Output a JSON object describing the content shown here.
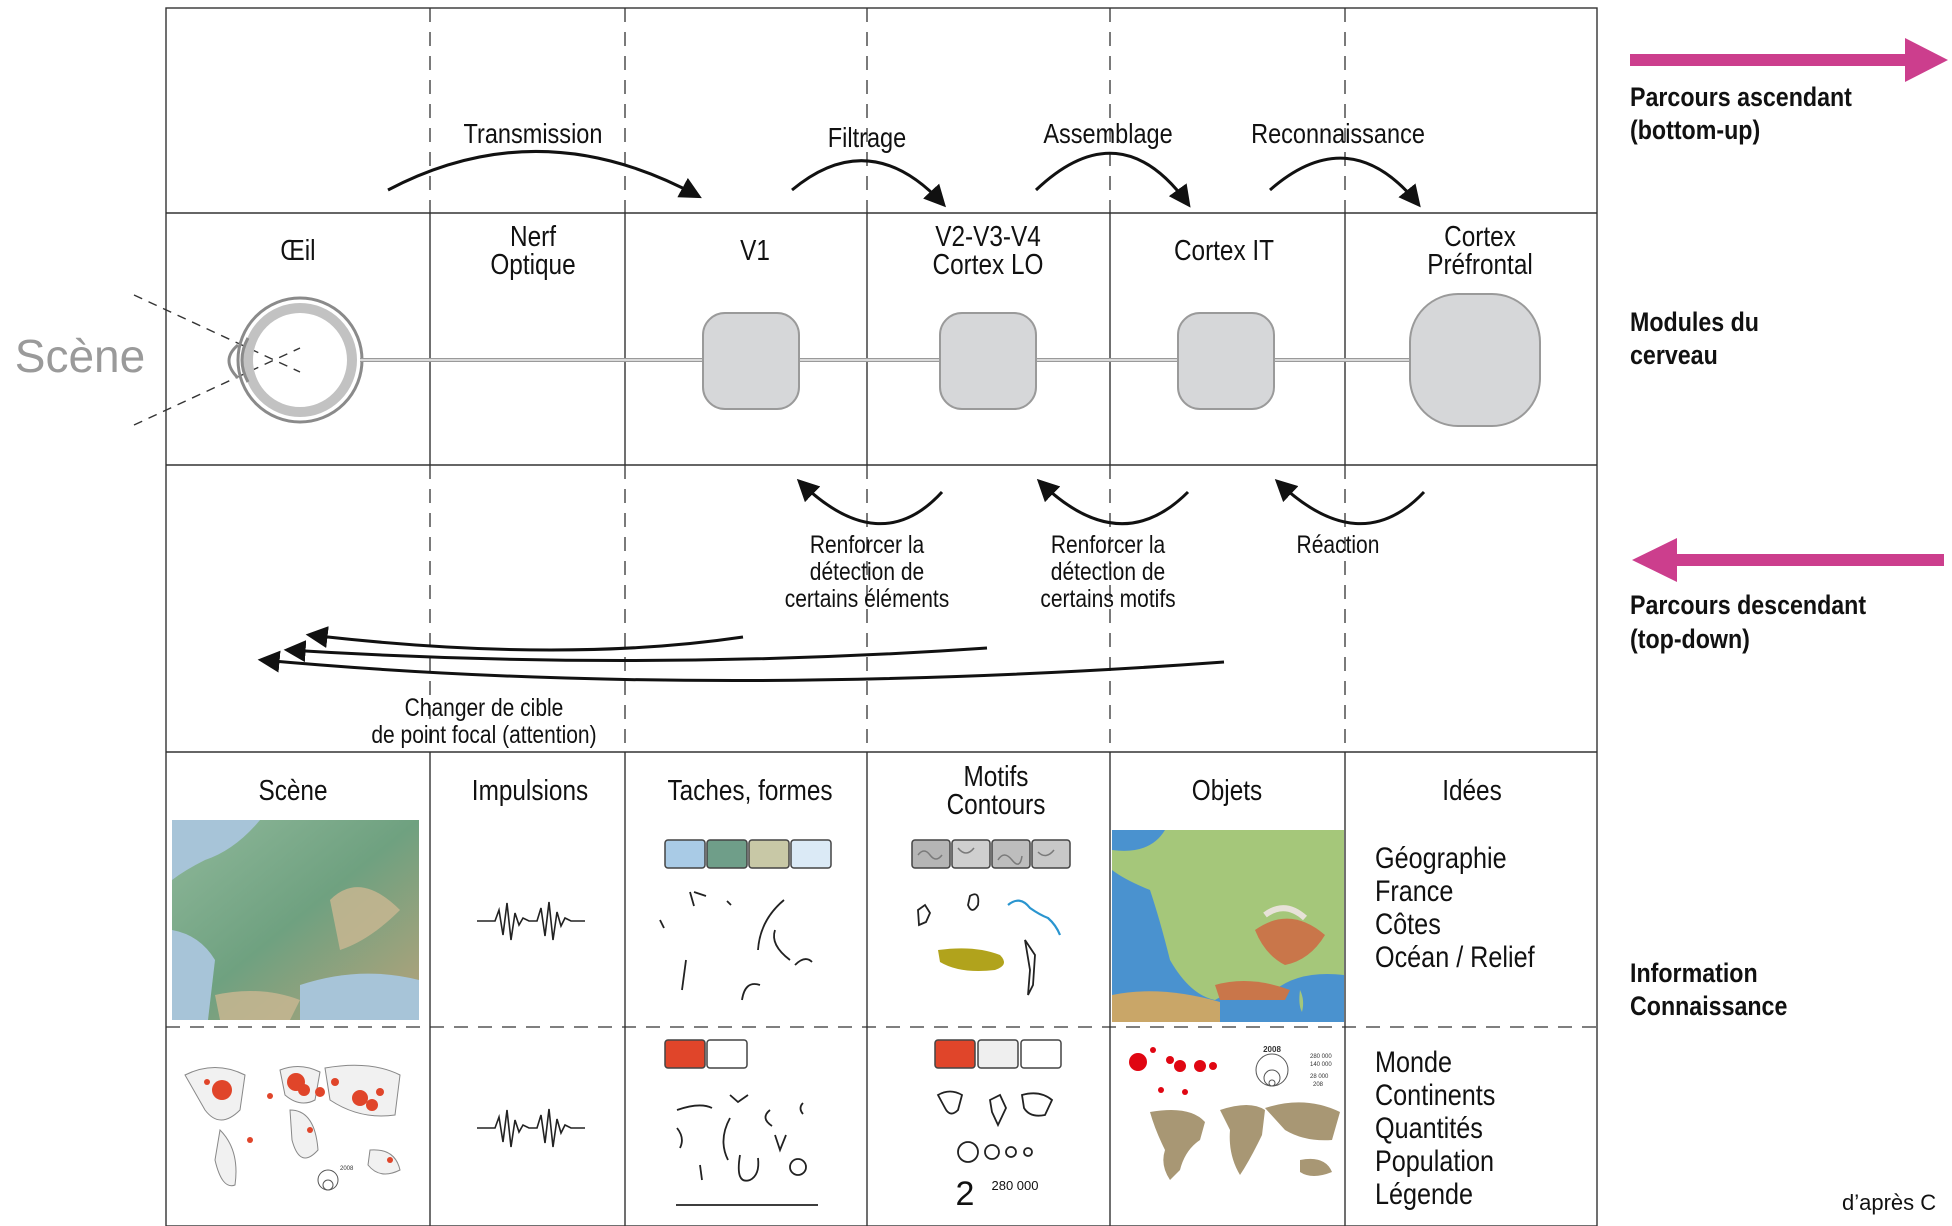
{
  "scene_label": "Scène",
  "top_processes": {
    "transmission": "Transmission",
    "filtrage": "Filtrage",
    "assemblage": "Assemblage",
    "reconnaissance": "Reconnaissance"
  },
  "modules": {
    "oeil": "Œil",
    "nerf_line1": "Nerf",
    "nerf_line2": "Optique",
    "v1": "V1",
    "v2_line1": "V2-V3-V4",
    "v2_line2": "Cortex LO",
    "cortex_it": "Cortex IT",
    "prefrontal_line1": "Cortex",
    "prefrontal_line2": "Préfrontal"
  },
  "feedback": {
    "renforcer1": [
      "Renforcer la",
      "détection de",
      "certains éléments"
    ],
    "renforcer2": [
      "Renforcer la",
      "détection de",
      "certains motifs"
    ],
    "reaction": "Réaction",
    "attention": [
      "Changer de cible",
      "de point focal (attention)"
    ]
  },
  "info_headers": {
    "scene": "Scène",
    "impulsions": "Impulsions",
    "taches": "Taches, formes",
    "motifs_line1": "Motifs",
    "motifs_line2": "Contours",
    "objets": "Objets",
    "idees": "Idées"
  },
  "ideas_top": [
    "Géographie",
    "France",
    "Côtes",
    "Océan / Relief"
  ],
  "ideas_bottom": [
    "Monde",
    "Continents",
    "Quantités",
    "Population",
    "Légende"
  ],
  "motifs_number": "2",
  "motifs_value": "280 000",
  "legend_year": "2008",
  "legend_values": [
    "280 000",
    "140 000",
    "28 000",
    "208"
  ],
  "side_labels": {
    "ascendant_line1": "Parcours ascendant",
    "ascendant_line2": "(bottom-up)",
    "modules_line1": "Modules du",
    "modules_line2": "cerveau",
    "descendant_line1": "Parcours descendant",
    "descendant_line2": "(top-down)",
    "info_line1": "Information",
    "info_line2": "Connaissance"
  },
  "credit": "d’après C",
  "colors": {
    "arrow_magenta": "#cc3e8d",
    "module_fill": "#d6d7d9",
    "ocean": "#4a92cf",
    "land_green": "#a5c77a",
    "orange_red": "#e0452a",
    "swatch_blue": "#a9cbe6",
    "swatch_green": "#6f9e89",
    "swatch_khaki": "#c8c8a6",
    "swatch_pale": "#dbeaf6",
    "olive": "#b1a31c",
    "tan": "#a89774"
  }
}
